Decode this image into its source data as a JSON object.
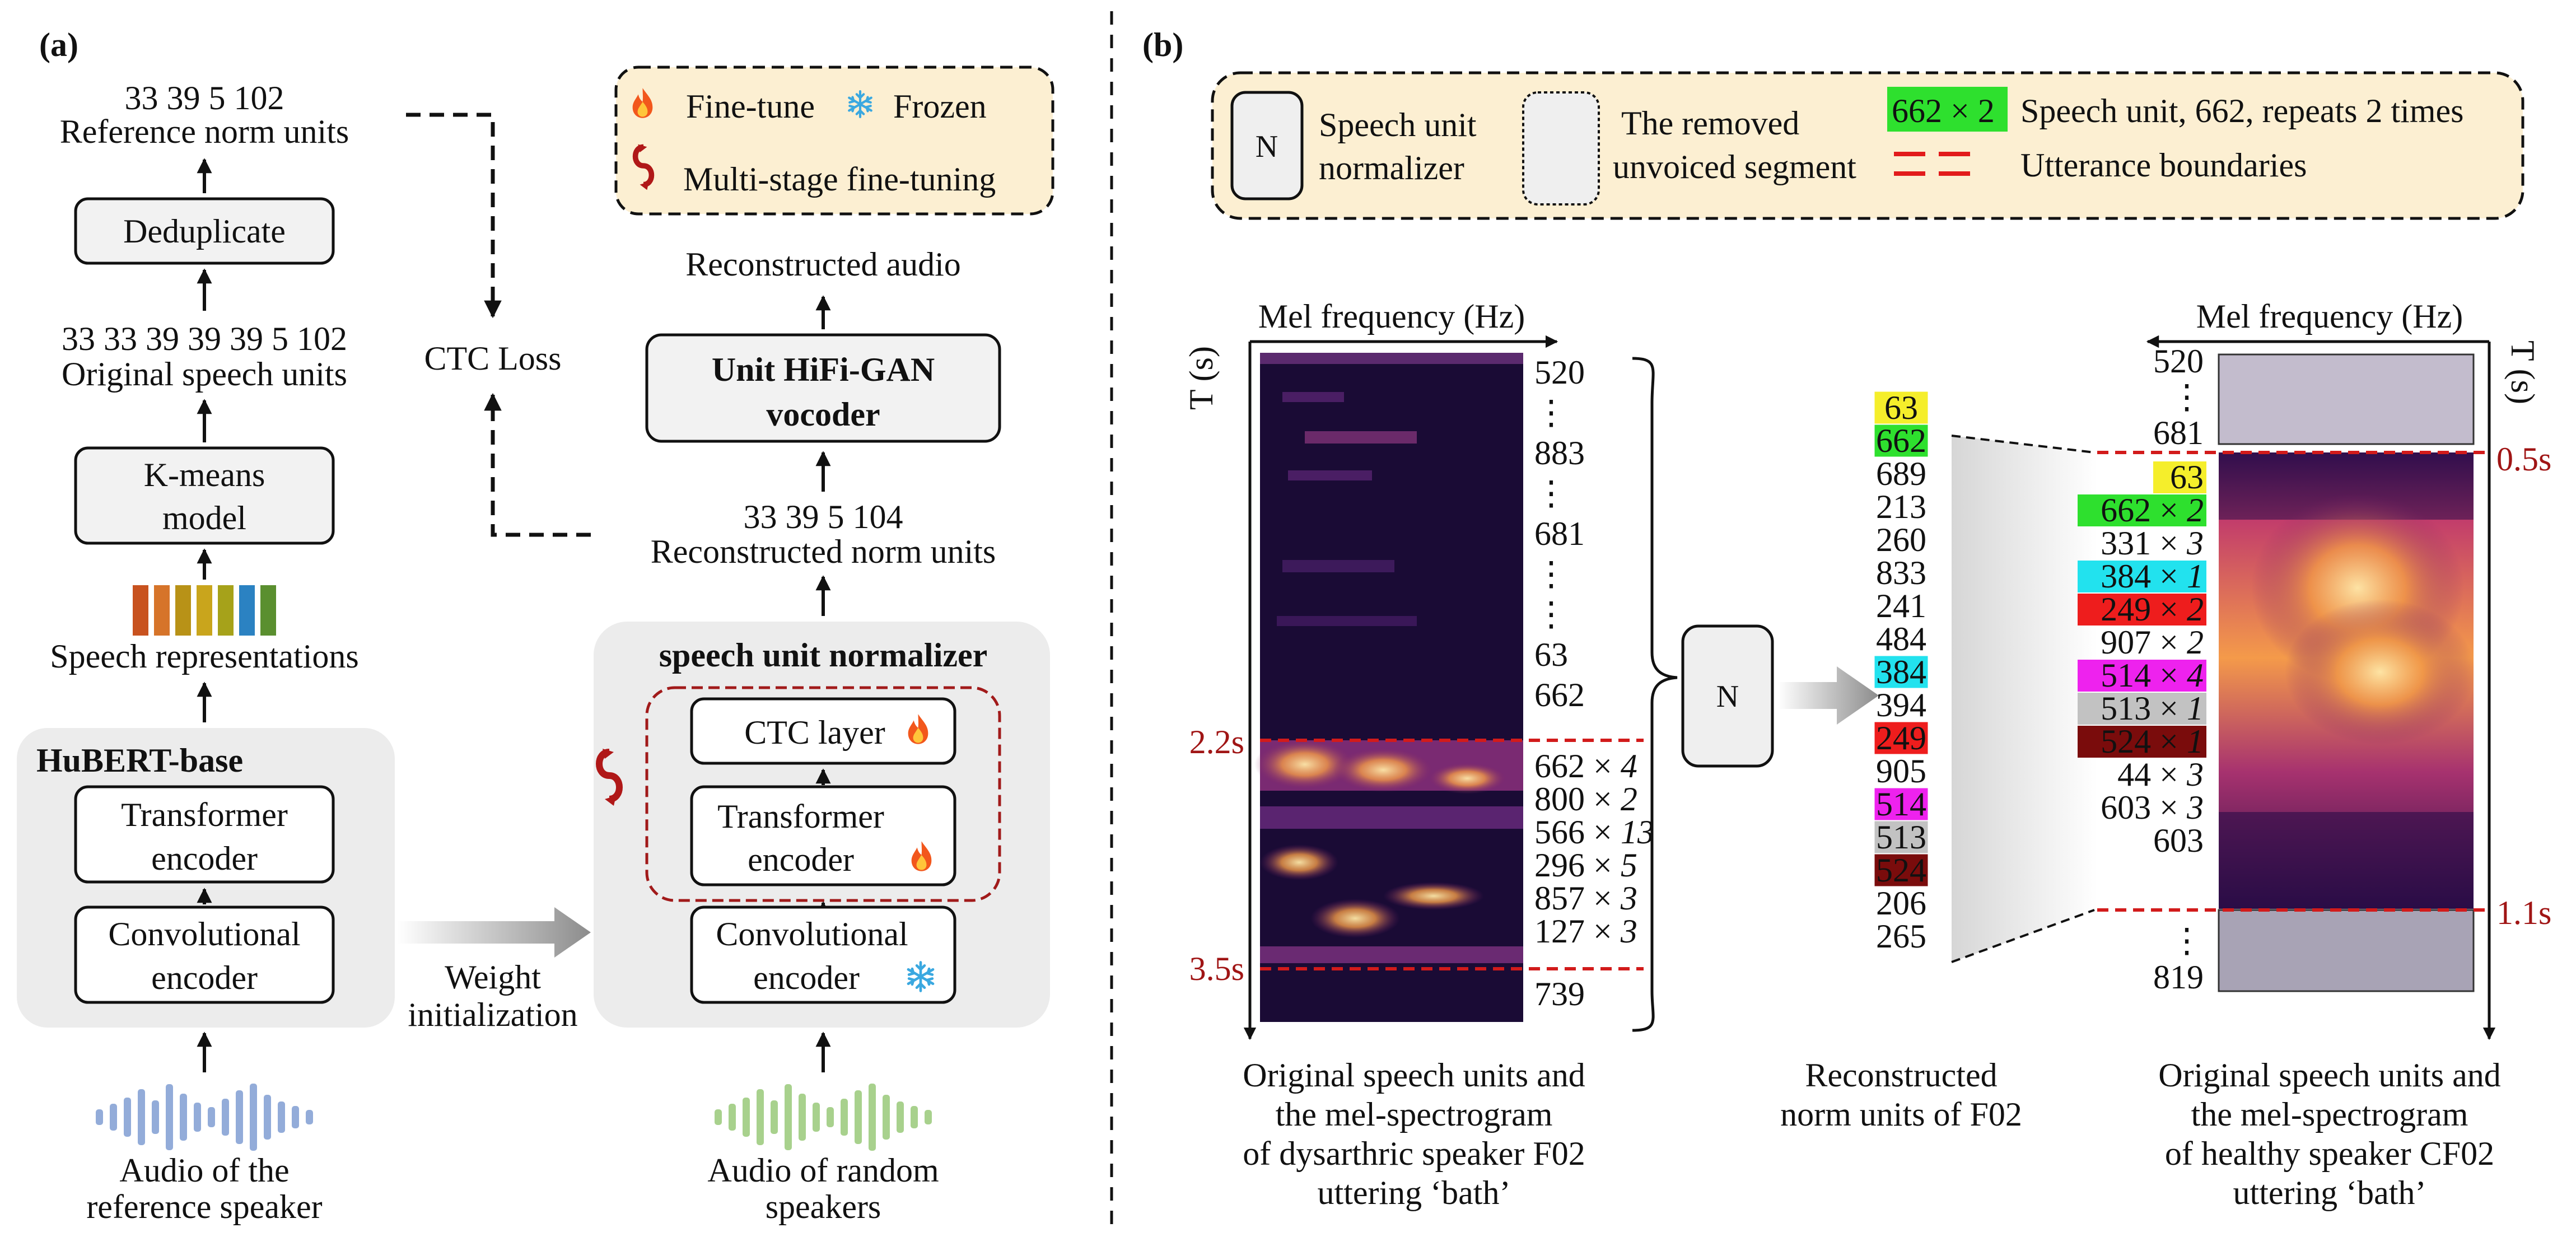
{
  "panel_a": {
    "label": "(a)",
    "ref_units": "33 39 5 102",
    "ref_units_label": "Reference norm units",
    "dedup": "Deduplicate",
    "orig_units": "33 33 39 39 39 5 102",
    "orig_units_label": "Original speech units",
    "kmeans_1": "K-means",
    "kmeans_2": "model",
    "speech_repr": "Speech representations",
    "repr_colors": [
      "#c8521f",
      "#d6742a",
      "#b89217",
      "#c9a51c",
      "#a6a21a",
      "#2b82c2",
      "#5a8f2f"
    ],
    "hubert": "HuBERT-base",
    "transformer_1": "Transformer",
    "transformer_2": "encoder",
    "conv_1": "Convolutional",
    "conv_2": "encoder",
    "audio_ref_1": "Audio of the",
    "audio_ref_2": "reference speaker",
    "weight_1": "Weight",
    "weight_2": "initialization",
    "ctc_loss": "CTC Loss",
    "legend": {
      "finetune": "Fine-tune",
      "frozen": "Frozen",
      "multistage": "Multi-stage fine-tuning"
    },
    "recon_audio": "Reconstructed audio",
    "vocoder_1": "Unit HiFi-GAN",
    "vocoder_2": "vocoder",
    "recon_units": "33 39 5 104",
    "recon_units_label": "Reconstructed norm units",
    "normalizer": "speech unit normalizer",
    "ctc_layer": "CTC layer",
    "audio_rand_1": "Audio of random",
    "audio_rand_2": "speakers"
  },
  "panel_b": {
    "label": "(b)",
    "legend": {
      "n": "N",
      "normalizer_1": "Speech unit",
      "normalizer_2": "normalizer",
      "removed_1": "The removed",
      "removed_2": "unvoiced segment",
      "unit_example": "662 × 2",
      "unit_example_desc": "Speech unit, 662, repeats 2 times",
      "boundaries": "Utterance boundaries"
    },
    "left": {
      "axis_top": "Mel frequency (Hz)",
      "axis_side": "T (s)",
      "t_start": "2.2s",
      "t_end": "3.5s",
      "units_before": [
        "520",
        "⋮",
        "883",
        "⋮",
        "681",
        "⋮",
        "⋮",
        "63",
        "662"
      ],
      "units_repeat": [
        {
          "unit": "662",
          "rep": "4"
        },
        {
          "unit": "800",
          "rep": "2"
        },
        {
          "unit": "566",
          "rep": "13"
        },
        {
          "unit": "296",
          "rep": "5"
        },
        {
          "unit": "857",
          "rep": "3"
        },
        {
          "unit": "127",
          "rep": "3"
        }
      ],
      "units_after": [
        "739"
      ],
      "caption": [
        "Original speech units and",
        "the mel-spectrogram",
        "of dysarthric speaker F02",
        "uttering ‘bath’"
      ]
    },
    "n_box": "N",
    "middle": {
      "units": [
        {
          "unit": "63",
          "color": "#f5ee2b"
        },
        {
          "unit": "662",
          "color": "#2ee02e"
        },
        {
          "unit": "689",
          "color": ""
        },
        {
          "unit": "213",
          "color": ""
        },
        {
          "unit": "260",
          "color": ""
        },
        {
          "unit": "833",
          "color": ""
        },
        {
          "unit": "241",
          "color": ""
        },
        {
          "unit": "484",
          "color": ""
        },
        {
          "unit": "384",
          "color": "#22e2ee"
        },
        {
          "unit": "394",
          "color": ""
        },
        {
          "unit": "249",
          "color": "#ee1d1d"
        },
        {
          "unit": "905",
          "color": ""
        },
        {
          "unit": "514",
          "color": "#ee22ee"
        },
        {
          "unit": "513",
          "color": "#c2c2c2"
        },
        {
          "unit": "524",
          "color": "#7a0c0c"
        },
        {
          "unit": "206",
          "color": ""
        },
        {
          "unit": "265",
          "color": ""
        }
      ],
      "caption": [
        "Reconstructed",
        "norm units of F02"
      ]
    },
    "right": {
      "axis_top": "Mel frequency (Hz)",
      "axis_side": "T (s)",
      "t_start": "0.5s",
      "t_end": "1.1s",
      "units_top": [
        "520",
        "⋮",
        "681"
      ],
      "units_mid": [
        {
          "unit": "63",
          "rep": "",
          "color": "#f5ee2b"
        },
        {
          "unit": "662",
          "rep": "2",
          "color": "#2ee02e"
        },
        {
          "unit": "331",
          "rep": "3",
          "color": ""
        },
        {
          "unit": "384",
          "rep": "1",
          "color": "#22e2ee"
        },
        {
          "unit": "249",
          "rep": "2",
          "color": "#ee1d1d"
        },
        {
          "unit": "907",
          "rep": "2",
          "color": ""
        },
        {
          "unit": "514",
          "rep": "4",
          "color": "#ee22ee"
        },
        {
          "unit": "513",
          "rep": "1",
          "color": "#c2c2c2"
        },
        {
          "unit": "524",
          "rep": "1",
          "color": "#7a0c0c"
        },
        {
          "unit": "44",
          "rep": "3",
          "color": ""
        },
        {
          "unit": "603",
          "rep": "3",
          "color": ""
        },
        {
          "unit": "603",
          "rep": "",
          "color": ""
        }
      ],
      "units_bottom": [
        "⋮",
        "819"
      ],
      "caption": [
        "Original speech units and",
        "the mel-spectrogram",
        "of healthy speaker CF02",
        "uttering ‘bath’"
      ]
    }
  }
}
